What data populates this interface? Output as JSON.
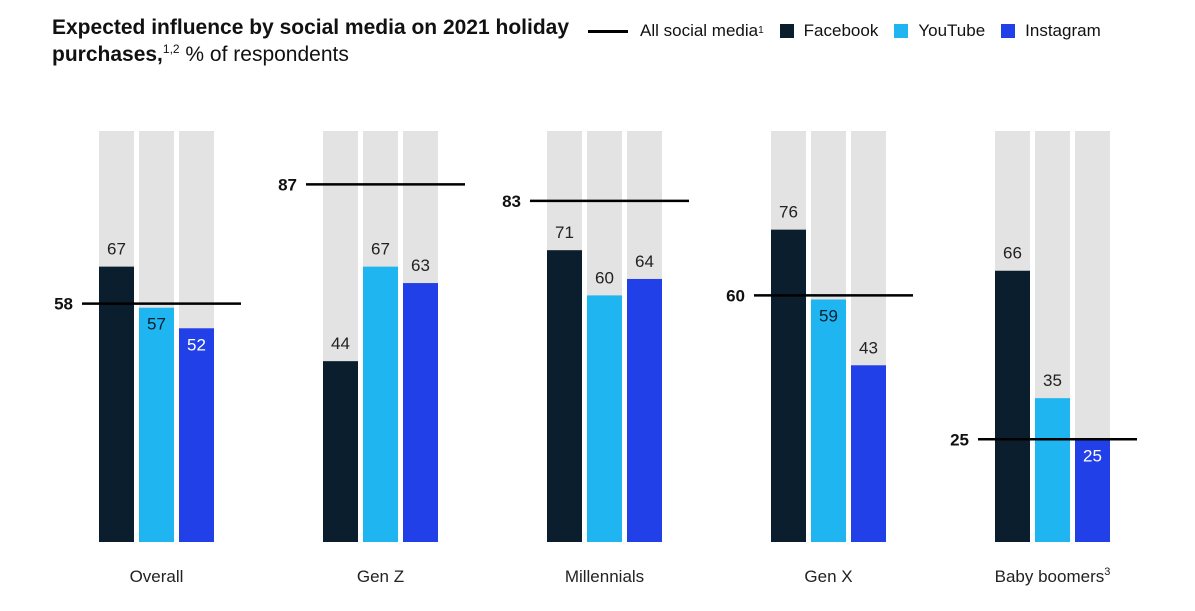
{
  "title": {
    "bold_text": "Expected influence by social media on 2021 holiday purchases,",
    "superscript": "1,2",
    "regular_text": " % of respondents"
  },
  "legend": {
    "items": [
      {
        "label": "All social media",
        "superscript": "1",
        "marker": "line",
        "color": "#000000"
      },
      {
        "label": "Facebook",
        "marker": "square",
        "color": "#0a1e2e"
      },
      {
        "label": "YouTube",
        "marker": "square",
        "color": "#1fb5f0"
      },
      {
        "label": "Instagram",
        "marker": "square",
        "color": "#2140e8"
      }
    ]
  },
  "colors": {
    "background_bar": "#e3e3e3",
    "facebook": "#0a1e2e",
    "youtube": "#1fb5f0",
    "instagram": "#2140e8",
    "reference_line": "#000000",
    "label_on_light": "#222222",
    "label_on_dark": "#ffffff"
  },
  "chart_data": {
    "type": "bar",
    "categories": [
      "Overall",
      "Gen Z",
      "Millennials",
      "Gen X",
      "Baby boomers"
    ],
    "category_superscripts": [
      "",
      "",
      "",
      "",
      "3"
    ],
    "series": [
      {
        "name": "Facebook",
        "values": [
          67,
          44,
          71,
          76,
          66
        ]
      },
      {
        "name": "YouTube",
        "values": [
          57,
          67,
          60,
          59,
          35
        ]
      },
      {
        "name": "Instagram",
        "values": [
          52,
          63,
          64,
          43,
          25
        ]
      }
    ],
    "reference_line": {
      "name": "All social media",
      "values": [
        58,
        87,
        83,
        60,
        25
      ]
    },
    "ylim": [
      0,
      100
    ],
    "grid": false,
    "legend_position": "top-right"
  }
}
